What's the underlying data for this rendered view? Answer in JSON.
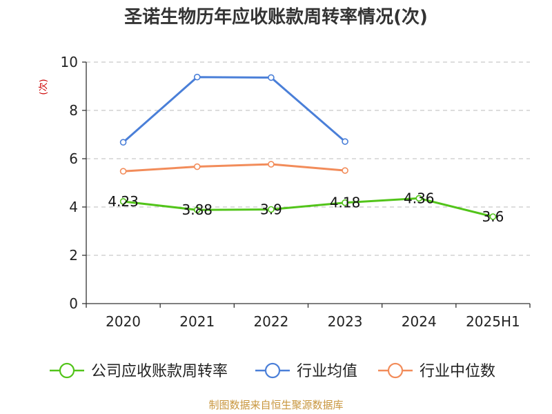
{
  "chart_data": {
    "type": "line",
    "title": "圣诺生物历年应收账款周转率情况(次)",
    "ylabel": "(次)",
    "xlabel": "",
    "categories": [
      "2020",
      "2021",
      "2022",
      "2023",
      "2024",
      "2025H1"
    ],
    "ylim": [
      0,
      10
    ],
    "yticks": [
      0,
      2,
      4,
      6,
      8,
      10
    ],
    "grid": true,
    "legend_position": "bottom",
    "series": [
      {
        "name": "公司应收账款周转率",
        "values": [
          4.23,
          3.88,
          3.9,
          4.18,
          4.36,
          3.6
        ],
        "labels": [
          "4.23",
          "3.88",
          "3.9",
          "4.18",
          "4.36",
          "3.6"
        ],
        "color": "#52c41a"
      },
      {
        "name": "行业均值",
        "values": [
          6.68,
          9.38,
          9.36,
          6.71,
          null,
          null
        ],
        "color": "#4a7fd8"
      },
      {
        "name": "行业中位数",
        "values": [
          5.48,
          5.67,
          5.77,
          5.51,
          null,
          null
        ],
        "color": "#f28c5a"
      }
    ]
  },
  "source": "制图数据来自恒生聚源数据库"
}
